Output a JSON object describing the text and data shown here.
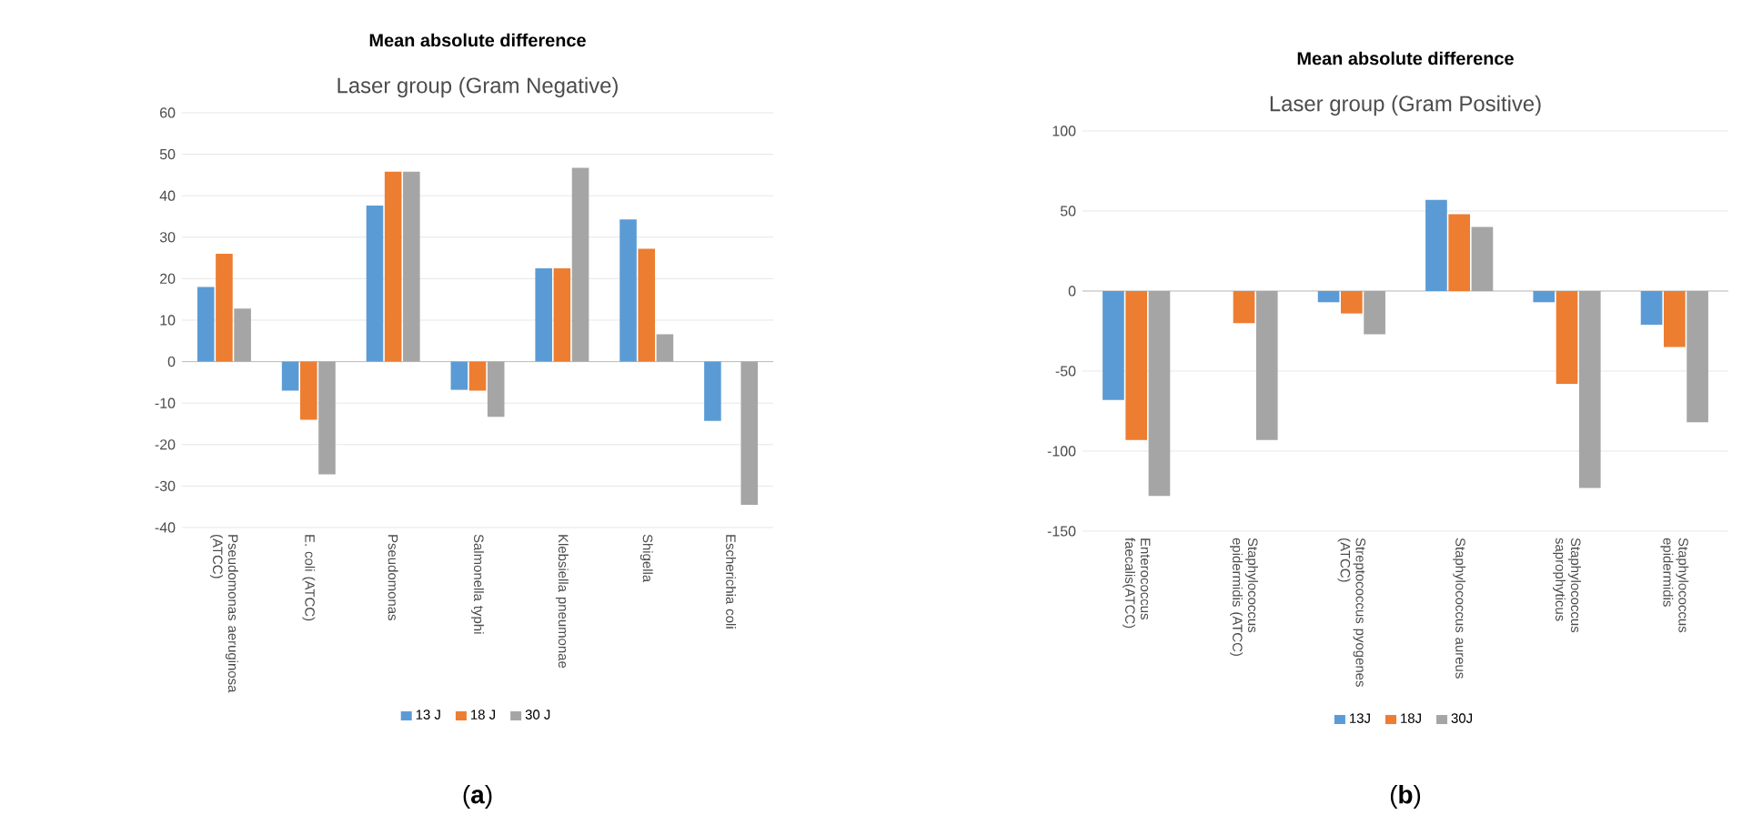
{
  "chart_data": [
    {
      "type": "bar",
      "title": "Mean absolute difference",
      "subtitle": "Laser group (Gram Negative)",
      "categories": [
        "Pseudomonas aeruginosa (ATCC)",
        "E. coli (ATCC)",
        "Pseudomonas",
        "Salmonella typhi",
        "Klebsiella pneumonae",
        "Shigella",
        "Escherichia coli"
      ],
      "series": [
        {
          "name": "13 J",
          "color": "#5b9bd5",
          "values": [
            18,
            -7,
            37.6,
            -6.8,
            22.5,
            34.3,
            -14.3
          ]
        },
        {
          "name": "18 J",
          "color": "#ed7d31",
          "values": [
            26,
            -14,
            45.8,
            -7,
            22.5,
            27.2,
            null
          ]
        },
        {
          "name": "30 J",
          "color": "#a5a5a5",
          "values": [
            12.8,
            -27.2,
            45.8,
            -13.3,
            46.7,
            6.6,
            -34.5
          ]
        }
      ],
      "ylim": [
        -40,
        60
      ],
      "yticks": [
        -40,
        -30,
        -20,
        -10,
        0,
        10,
        20,
        30,
        40,
        50,
        60
      ],
      "grid": "y",
      "legend": "bottom",
      "annotations": [
        "(**a**)"
      ]
    },
    {
      "type": "bar",
      "title": "Mean absolute difference",
      "subtitle": "Laser group (Gram Positive)",
      "categories": [
        "Enterococcus faecalis(ATCC)",
        "Staphylococcus epidermidis (ATCC)",
        "Streptococcus pyogenes (ATCC)",
        "Staphylococcus aureus",
        "Staphylococcus saprophyticus",
        "Staphylococcus epidermidis"
      ],
      "series": [
        {
          "name": "13J",
          "color": "#5b9bd5",
          "values": [
            -68,
            null,
            -7,
            57,
            -7,
            -21
          ]
        },
        {
          "name": "18J",
          "color": "#ed7d31",
          "values": [
            -93,
            -20,
            -14,
            48,
            -58,
            -35
          ]
        },
        {
          "name": "30J",
          "color": "#a5a5a5",
          "values": [
            -128,
            -93,
            -27,
            40,
            -123,
            -82
          ]
        }
      ],
      "ylim": [
        -150,
        100
      ],
      "yticks": [
        -150,
        -100,
        -50,
        0,
        50,
        100
      ],
      "grid": "y",
      "legend": "bottom",
      "annotations": [
        "(**b**)"
      ]
    }
  ]
}
